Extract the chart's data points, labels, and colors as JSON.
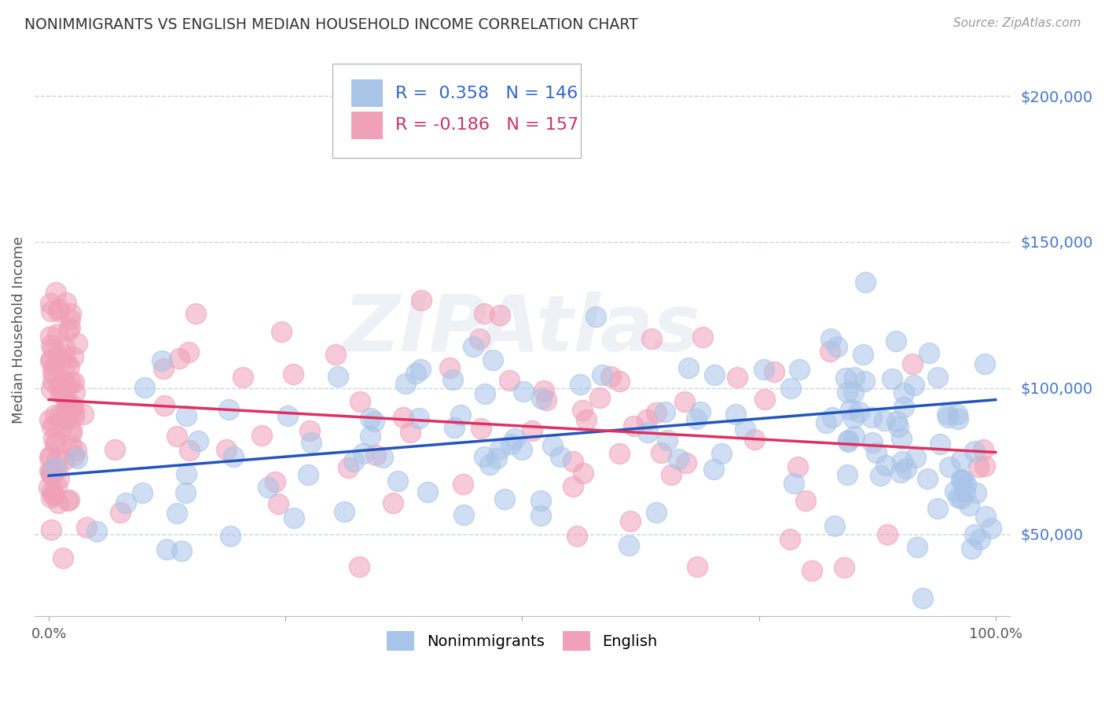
{
  "title": "NONIMMIGRANTS VS ENGLISH MEDIAN HOUSEHOLD INCOME CORRELATION CHART",
  "source": "Source: ZipAtlas.com",
  "ylabel": "Median Household Income",
  "ytick_labels": [
    "$50,000",
    "$100,000",
    "$150,000",
    "$200,000"
  ],
  "ytick_values": [
    50000,
    100000,
    150000,
    200000
  ],
  "ylim": [
    22000,
    218000
  ],
  "xlim": [
    -0.015,
    1.015
  ],
  "r_blue": 0.358,
  "n_blue": 146,
  "r_pink": -0.186,
  "n_pink": 157,
  "blue_color": "#a8c4e8",
  "pink_color": "#f0a0b8",
  "blue_line_color": "#2255bb",
  "pink_line_color": "#e03060",
  "trend_blue_y0": 70000,
  "trend_blue_y1": 96000,
  "trend_pink_y0": 96000,
  "trend_pink_y1": 78000,
  "background_color": "#ffffff",
  "grid_color": "#c8d4e4",
  "watermark": "ZIPAtlas",
  "legend_r1_color": "#3366cc",
  "legend_r2_color": "#cc3366",
  "legend_n_color": "#3366cc"
}
